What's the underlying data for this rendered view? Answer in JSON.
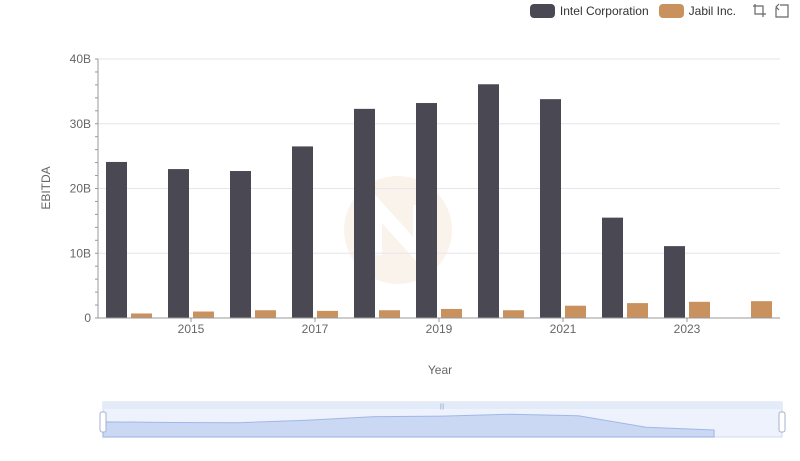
{
  "chart_data": {
    "type": "bar",
    "title": "",
    "xlabel": "Year",
    "ylabel": "EBITDA",
    "categories": [
      "2014",
      "2015",
      "2016",
      "2017",
      "2018",
      "2019",
      "2020",
      "2021",
      "2022",
      "2023",
      "2024"
    ],
    "x_tick_labels": [
      "2015",
      "2017",
      "2019",
      "2021",
      "2023"
    ],
    "y_tick_labels": [
      "0",
      "10B",
      "20B",
      "30B",
      "40B"
    ],
    "ylim": [
      0,
      40000000000
    ],
    "series": [
      {
        "name": "Intel Corporation",
        "color": "#4a4853",
        "values": [
          24100000000,
          23000000000,
          22700000000,
          26500000000,
          32300000000,
          33200000000,
          36100000000,
          33800000000,
          15500000000,
          11100000000,
          null
        ]
      },
      {
        "name": "Jabil Inc.",
        "color": "#c9915e",
        "values": [
          700000000,
          1000000000,
          1200000000,
          1100000000,
          1200000000,
          1400000000,
          1200000000,
          1900000000,
          2300000000,
          2500000000,
          2600000000
        ]
      }
    ],
    "legend_position": "top-right",
    "grid": true,
    "overview_slider": true
  },
  "icons": {
    "zoom": "zoom-icon",
    "restore": "restore-icon"
  }
}
